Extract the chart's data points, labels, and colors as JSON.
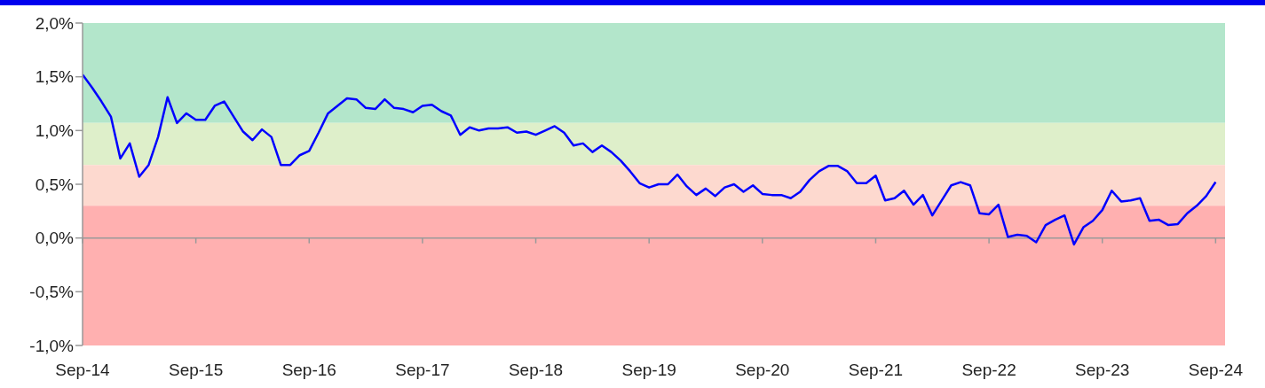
{
  "chart_data": {
    "type": "line",
    "x": [
      "2014-09",
      "2014-10",
      "2014-11",
      "2014-12",
      "2015-01",
      "2015-02",
      "2015-03",
      "2015-04",
      "2015-05",
      "2015-06",
      "2015-07",
      "2015-08",
      "2015-09",
      "2015-10",
      "2015-11",
      "2015-12",
      "2016-01",
      "2016-02",
      "2016-03",
      "2016-04",
      "2016-05",
      "2016-06",
      "2016-07",
      "2016-08",
      "2016-09",
      "2016-10",
      "2016-11",
      "2016-12",
      "2017-01",
      "2017-02",
      "2017-03",
      "2017-04",
      "2017-05",
      "2017-06",
      "2017-07",
      "2017-08",
      "2017-09",
      "2017-10",
      "2017-11",
      "2017-12",
      "2018-01",
      "2018-02",
      "2018-03",
      "2018-04",
      "2018-05",
      "2018-06",
      "2018-07",
      "2018-08",
      "2018-09",
      "2018-10",
      "2018-11",
      "2018-12",
      "2019-01",
      "2019-02",
      "2019-03",
      "2019-04",
      "2019-05",
      "2019-06",
      "2019-07",
      "2019-08",
      "2019-09",
      "2019-10",
      "2019-11",
      "2019-12",
      "2020-01",
      "2020-02",
      "2020-03",
      "2020-04",
      "2020-05",
      "2020-06",
      "2020-07",
      "2020-08",
      "2020-09",
      "2020-10",
      "2020-11",
      "2020-12",
      "2021-01",
      "2021-02",
      "2021-03",
      "2021-04",
      "2021-05",
      "2021-06",
      "2021-07",
      "2021-08",
      "2021-09",
      "2021-10",
      "2021-11",
      "2021-12",
      "2022-01",
      "2022-02",
      "2022-03",
      "2022-04",
      "2022-05",
      "2022-06",
      "2022-07",
      "2022-08",
      "2022-09",
      "2022-10",
      "2022-11",
      "2022-12",
      "2023-01",
      "2023-02",
      "2023-03",
      "2023-04",
      "2023-05",
      "2023-06",
      "2023-07",
      "2023-08",
      "2023-09",
      "2023-10",
      "2023-11",
      "2023-12",
      "2024-01",
      "2024-02",
      "2024-03",
      "2024-04",
      "2024-05",
      "2024-06",
      "2024-07",
      "2024-08",
      "2024-09"
    ],
    "series": [
      {
        "color": "#0000ff",
        "values": [
          1.52,
          1.4,
          1.27,
          1.13,
          0.74,
          0.88,
          0.57,
          0.68,
          0.94,
          1.31,
          1.07,
          1.16,
          1.1,
          1.1,
          1.23,
          1.27,
          1.13,
          0.99,
          0.91,
          1.01,
          0.94,
          0.68,
          0.68,
          0.77,
          0.81,
          0.98,
          1.16,
          1.23,
          1.3,
          1.29,
          1.21,
          1.2,
          1.29,
          1.21,
          1.2,
          1.17,
          1.23,
          1.24,
          1.18,
          1.14,
          0.96,
          1.03,
          1.0,
          1.02,
          1.02,
          1.03,
          0.98,
          0.99,
          0.96,
          1.0,
          1.04,
          0.98,
          0.86,
          0.88,
          0.8,
          0.86,
          0.8,
          0.72,
          0.62,
          0.51,
          0.47,
          0.5,
          0.5,
          0.59,
          0.48,
          0.4,
          0.46,
          0.39,
          0.47,
          0.5,
          0.43,
          0.49,
          0.41,
          0.4,
          0.4,
          0.37,
          0.43,
          0.54,
          0.62,
          0.67,
          0.67,
          0.62,
          0.51,
          0.51,
          0.58,
          0.35,
          0.37,
          0.44,
          0.31,
          0.4,
          0.21,
          0.35,
          0.49,
          0.52,
          0.49,
          0.23,
          0.22,
          0.31,
          0.01,
          0.03,
          0.02,
          -0.04,
          0.12,
          0.17,
          0.21,
          -0.06,
          0.1,
          0.16,
          0.26,
          0.44,
          0.34,
          0.35,
          0.37,
          0.16,
          0.17,
          0.12,
          0.13,
          0.23,
          0.3,
          0.39,
          0.52
        ]
      }
    ],
    "xlim": [
      "2014-09",
      "2024-10"
    ],
    "xticks": [
      {
        "value": "2014-09",
        "label": "Sep-14"
      },
      {
        "value": "2015-09",
        "label": "Sep-15"
      },
      {
        "value": "2016-09",
        "label": "Sep-16"
      },
      {
        "value": "2017-09",
        "label": "Sep-17"
      },
      {
        "value": "2018-09",
        "label": "Sep-18"
      },
      {
        "value": "2019-09",
        "label": "Sep-19"
      },
      {
        "value": "2020-09",
        "label": "Sep-20"
      },
      {
        "value": "2021-09",
        "label": "Sep-21"
      },
      {
        "value": "2022-09",
        "label": "Sep-22"
      },
      {
        "value": "2023-09",
        "label": "Sep-23"
      },
      {
        "value": "2024-09",
        "label": "Sep-24"
      }
    ],
    "ylim": [
      -1.0,
      2.0
    ],
    "yticks": [
      {
        "value": -1.0,
        "label": "-1,0%"
      },
      {
        "value": -0.5,
        "label": "-0,5%"
      },
      {
        "value": 0,
        "label": "0,0%"
      },
      {
        "value": 0.5,
        "label": "0,5%"
      },
      {
        "value": 1.0,
        "label": "1,0%"
      },
      {
        "value": 1.5,
        "label": "1,5%"
      },
      {
        "value": 2.0,
        "label": "2,0%"
      }
    ],
    "bands": [
      {
        "axis": "y",
        "from": 1.07,
        "to": 2.0,
        "color": "#b3e6cb"
      },
      {
        "axis": "y",
        "from": 0.68,
        "to": 1.07,
        "color": "#deefca"
      },
      {
        "axis": "y",
        "from": 0.3,
        "to": 0.68,
        "color": "#fdd9cf"
      },
      {
        "axis": "y",
        "from": -1.0,
        "to": 0.3,
        "color": "#ffb0b0"
      }
    ],
    "marker": "none",
    "line_style": "solid"
  }
}
